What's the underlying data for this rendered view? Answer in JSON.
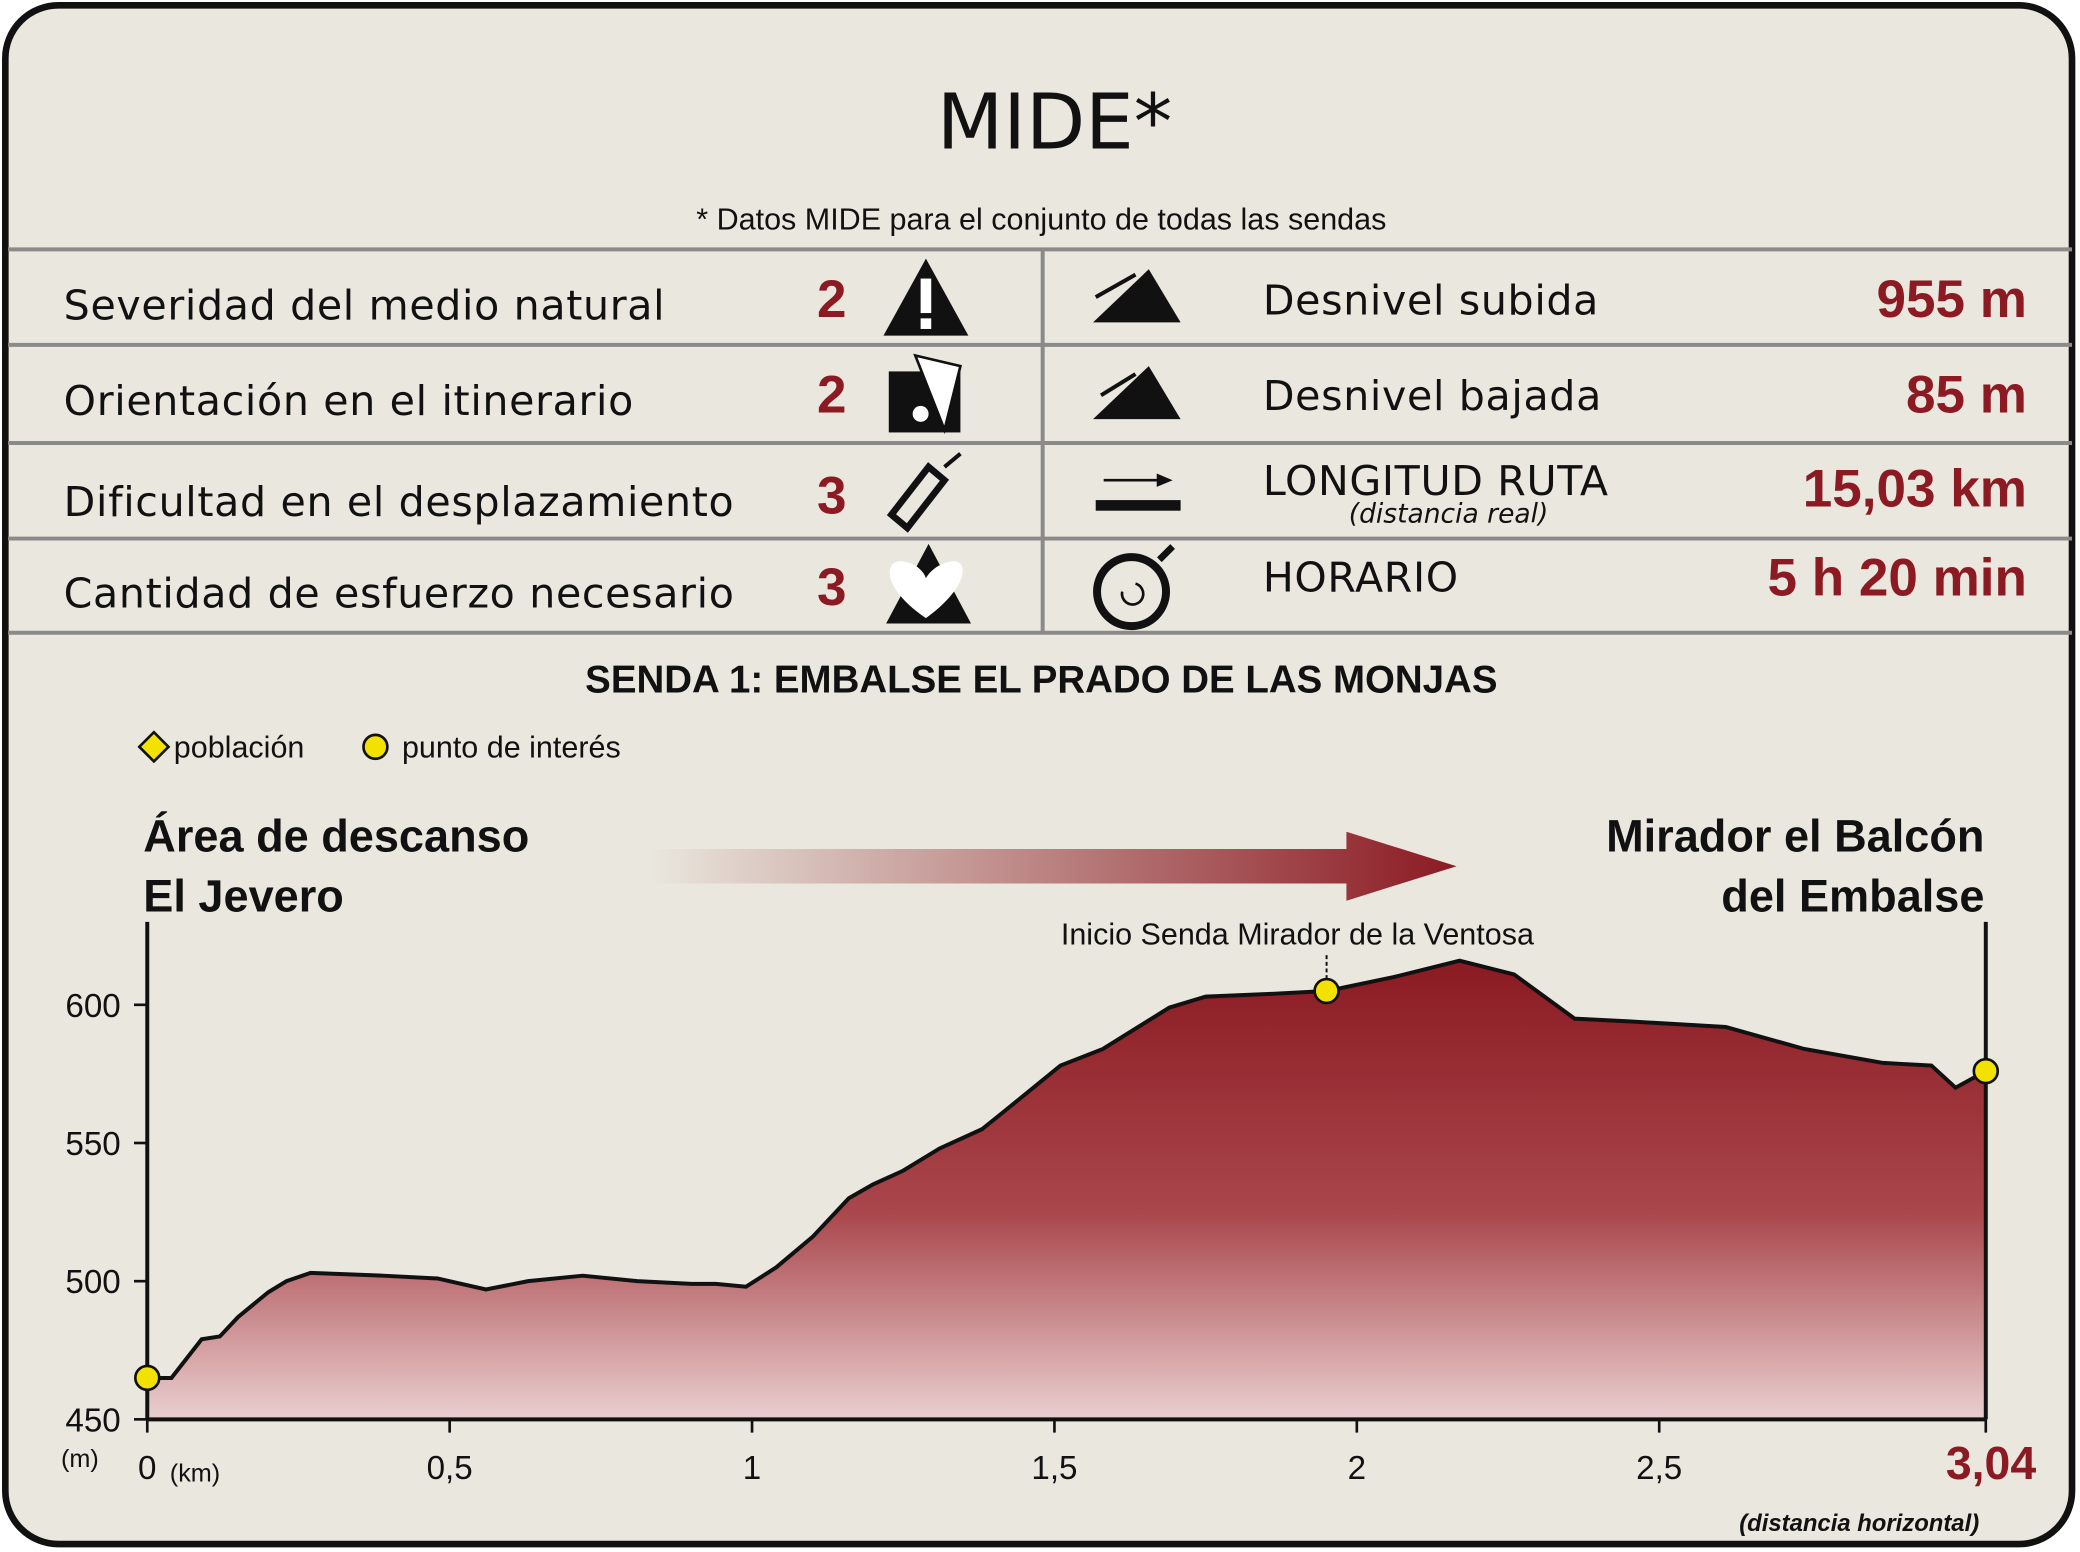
{
  "header": {
    "title": "MIDE*",
    "note": "* Datos MIDE para el conjunto de todas las sendas"
  },
  "mide": {
    "rows": [
      {
        "label": "Severidad del medio natural",
        "score": 2,
        "right_label": "Desnivel subida",
        "right_value": "955 m"
      },
      {
        "label": "Orientación en el itinerario",
        "score": 2,
        "right_label": "Desnivel bajada",
        "right_value": "85 m"
      },
      {
        "label": "Dificultad en el desplazamiento",
        "score": 3,
        "right_label": "LONGITUD RUTA",
        "right_note": "(distancia real)",
        "right_value": "15,03 km"
      },
      {
        "label": "Cantidad de esfuerzo necesario",
        "score": 3,
        "right_label": "HORARIO",
        "right_value": "5 h 20 min"
      }
    ]
  },
  "chart_data": {
    "type": "area",
    "title": "SENDA 1: EMBALSE EL PRADO DE LAS MONJAS",
    "legend": [
      "población",
      "punto de interés"
    ],
    "start_label": [
      "Área de descanso",
      "El Jevero"
    ],
    "end_label": [
      "Mirador el Balcón",
      "del Embalse"
    ],
    "y_unit": "(m)",
    "x_unit": "(km)",
    "x_note": "(distancia horizontal)",
    "color": "#8b1a22",
    "x": [
      0,
      0.04,
      0.09,
      0.12,
      0.15,
      0.2,
      0.23,
      0.27,
      0.39,
      0.48,
      0.56,
      0.63,
      0.72,
      0.81,
      0.9,
      0.94,
      0.99,
      1.04,
      1.1,
      1.16,
      1.2,
      1.25,
      1.31,
      1.38,
      1.42,
      1.51,
      1.58,
      1.69,
      1.75,
      1.86,
      1.95,
      2.06,
      2.17,
      2.26,
      2.36,
      2.45,
      2.61,
      2.74,
      2.87,
      2.95,
      2.99,
      3.04
    ],
    "values": [
      465,
      465,
      479,
      480,
      487,
      496,
      500,
      503,
      502,
      501,
      497,
      500,
      502,
      500,
      499,
      499,
      498,
      505,
      516,
      530,
      535,
      540,
      548,
      555,
      562,
      578,
      584,
      599,
      603,
      604,
      605,
      610,
      616,
      611,
      595,
      594,
      592,
      584,
      579,
      578,
      570,
      576
    ],
    "points": {
      "x": [
        0,
        1.95,
        3.04
      ],
      "values": [
        465,
        605,
        576
      ]
    },
    "annotation": "Inicio Senda Mirador de la Ventosa",
    "xlim": [
      0,
      3.04
    ],
    "ylim": [
      450,
      630
    ],
    "xticks": [
      0,
      {
        "value": 0.5,
        "label": "0,5"
      },
      1,
      {
        "value": 1.5,
        "label": "1,5"
      },
      2,
      {
        "value": 2.5,
        "label": "2,5"
      },
      {
        "value": 3.04,
        "label": "3,04"
      }
    ],
    "yticks": [
      450,
      500,
      550,
      600
    ]
  }
}
